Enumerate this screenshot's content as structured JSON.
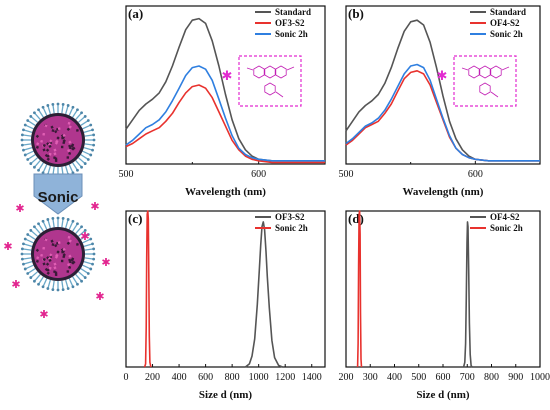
{
  "illustration": {
    "arrow_label": "Sonic",
    "colors": {
      "nanoparticle": "#b0368e",
      "shell": "#6aa8c8",
      "dye": "#e2248f",
      "arrow": "#7fa8d2"
    }
  },
  "chart_data": [
    {
      "id": "a",
      "type": "line",
      "panel_label": "(a)",
      "xlabel": "Wavelength (nm)",
      "ylabel": "",
      "xlim": [
        500,
        650
      ],
      "ylim": [
        0,
        1.0
      ],
      "xticks": [
        500,
        600
      ],
      "show_y_ticks": false,
      "legend_position": "top-right",
      "has_inset_structure": true,
      "series": [
        {
          "name": "Standard",
          "color": "#555555",
          "x": [
            500,
            505,
            510,
            515,
            520,
            525,
            530,
            535,
            540,
            545,
            550,
            555,
            560,
            565,
            570,
            575,
            580,
            585,
            590,
            595,
            600,
            610,
            620,
            630,
            640,
            650
          ],
          "y": [
            0.22,
            0.28,
            0.34,
            0.38,
            0.41,
            0.45,
            0.52,
            0.62,
            0.74,
            0.85,
            0.91,
            0.92,
            0.89,
            0.78,
            0.62,
            0.44,
            0.28,
            0.16,
            0.09,
            0.05,
            0.03,
            0.02,
            0.02,
            0.02,
            0.02,
            0.02
          ]
        },
        {
          "name": "OF3-S2",
          "color": "#e8322e",
          "x": [
            500,
            505,
            510,
            515,
            520,
            525,
            530,
            535,
            540,
            545,
            550,
            555,
            560,
            565,
            570,
            575,
            580,
            585,
            590,
            595,
            600,
            610,
            620,
            630,
            640,
            650
          ],
          "y": [
            0.11,
            0.13,
            0.16,
            0.19,
            0.21,
            0.23,
            0.27,
            0.32,
            0.39,
            0.45,
            0.49,
            0.5,
            0.48,
            0.42,
            0.33,
            0.24,
            0.15,
            0.09,
            0.05,
            0.03,
            0.02,
            0.01,
            0.01,
            0.01,
            0.01,
            0.01
          ]
        },
        {
          "name": "Sonic 2h",
          "color": "#2f7fe0",
          "x": [
            500,
            505,
            510,
            515,
            520,
            525,
            530,
            535,
            540,
            545,
            550,
            555,
            560,
            565,
            570,
            575,
            580,
            585,
            590,
            595,
            600,
            610,
            620,
            630,
            640,
            650
          ],
          "y": [
            0.12,
            0.15,
            0.19,
            0.23,
            0.25,
            0.28,
            0.33,
            0.4,
            0.48,
            0.56,
            0.61,
            0.62,
            0.6,
            0.53,
            0.41,
            0.29,
            0.18,
            0.1,
            0.06,
            0.04,
            0.03,
            0.02,
            0.02,
            0.02,
            0.02,
            0.02
          ]
        }
      ]
    },
    {
      "id": "b",
      "type": "line",
      "panel_label": "(b)",
      "xlabel": "Wavelength (nm)",
      "ylabel": "",
      "xlim": [
        500,
        650
      ],
      "ylim": [
        0,
        1.0
      ],
      "xticks": [
        500,
        600
      ],
      "show_y_ticks": false,
      "legend_position": "top-right",
      "has_inset_structure": true,
      "series": [
        {
          "name": "Standard",
          "color": "#555555",
          "x": [
            500,
            505,
            510,
            515,
            520,
            525,
            530,
            535,
            540,
            545,
            550,
            555,
            560,
            565,
            570,
            575,
            580,
            585,
            590,
            595,
            600,
            610,
            620,
            630,
            640,
            650
          ],
          "y": [
            0.21,
            0.27,
            0.33,
            0.37,
            0.4,
            0.44,
            0.51,
            0.61,
            0.73,
            0.84,
            0.9,
            0.91,
            0.88,
            0.77,
            0.61,
            0.43,
            0.27,
            0.16,
            0.09,
            0.05,
            0.03,
            0.02,
            0.02,
            0.02,
            0.02,
            0.02
          ]
        },
        {
          "name": "OF4-S2",
          "color": "#e8322e",
          "x": [
            500,
            505,
            510,
            515,
            520,
            525,
            530,
            535,
            540,
            545,
            550,
            555,
            560,
            565,
            570,
            575,
            580,
            585,
            590,
            595,
            600,
            610,
            620,
            630,
            640,
            650
          ],
          "y": [
            0.12,
            0.15,
            0.19,
            0.23,
            0.25,
            0.27,
            0.32,
            0.38,
            0.46,
            0.54,
            0.58,
            0.59,
            0.57,
            0.5,
            0.39,
            0.28,
            0.17,
            0.1,
            0.06,
            0.04,
            0.03,
            0.02,
            0.02,
            0.02,
            0.02,
            0.02
          ]
        },
        {
          "name": "Sonic 2h",
          "color": "#2f7fe0",
          "x": [
            500,
            505,
            510,
            515,
            520,
            525,
            530,
            535,
            540,
            545,
            550,
            555,
            560,
            565,
            570,
            575,
            580,
            585,
            590,
            595,
            600,
            610,
            620,
            630,
            640,
            650
          ],
          "y": [
            0.13,
            0.16,
            0.2,
            0.24,
            0.26,
            0.29,
            0.34,
            0.41,
            0.49,
            0.57,
            0.62,
            0.63,
            0.61,
            0.53,
            0.41,
            0.29,
            0.18,
            0.1,
            0.06,
            0.04,
            0.03,
            0.02,
            0.02,
            0.02,
            0.02,
            0.02
          ]
        }
      ]
    },
    {
      "id": "c",
      "type": "line",
      "panel_label": "(c)",
      "xlabel": "Size d  (nm)",
      "ylabel": "",
      "xlim": [
        0,
        1500
      ],
      "ylim": [
        0,
        1.0
      ],
      "xticks": [
        0,
        200,
        400,
        600,
        800,
        1000,
        1200,
        1400
      ],
      "show_y_ticks": false,
      "legend_position": "top-right",
      "series": [
        {
          "name": "OF3-S2",
          "color": "#555555",
          "x": [
            900,
            930,
            950,
            970,
            990,
            1005,
            1015,
            1025,
            1035,
            1045,
            1055,
            1065,
            1080,
            1100,
            1120,
            1150,
            1180
          ],
          "y": [
            0.0,
            0.02,
            0.07,
            0.18,
            0.4,
            0.62,
            0.78,
            0.9,
            0.93,
            0.88,
            0.74,
            0.58,
            0.38,
            0.17,
            0.06,
            0.01,
            0.0
          ]
        },
        {
          "name": "Sonic 2h",
          "color": "#e8322e",
          "x": [
            140,
            148,
            152,
            156,
            160,
            164,
            168,
            172,
            176,
            180,
            188
          ],
          "y": [
            0.0,
            0.02,
            0.25,
            0.7,
            0.98,
            1.0,
            0.95,
            0.6,
            0.2,
            0.03,
            0.0
          ]
        }
      ]
    },
    {
      "id": "d",
      "type": "line",
      "panel_label": "(d)",
      "xlabel": "Size d  (nm)",
      "ylabel": "",
      "xlim": [
        200,
        1000
      ],
      "ylim": [
        0,
        1.0
      ],
      "xticks": [
        200,
        300,
        400,
        500,
        600,
        700,
        800,
        900,
        1000
      ],
      "show_y_ticks": false,
      "legend_position": "top-right",
      "series": [
        {
          "name": "OF4-S2",
          "color": "#555555",
          "x": [
            685,
            690,
            693,
            696,
            699,
            701,
            703,
            706,
            709,
            712,
            716,
            720
          ],
          "y": [
            0.0,
            0.03,
            0.15,
            0.45,
            0.8,
            0.93,
            0.9,
            0.62,
            0.28,
            0.08,
            0.01,
            0.0
          ]
        },
        {
          "name": "Sonic 2h",
          "color": "#e8322e",
          "x": [
            248,
            250,
            252,
            254,
            256,
            258,
            260,
            262,
            264
          ],
          "y": [
            0.0,
            0.15,
            0.65,
            0.98,
            1.0,
            0.85,
            0.35,
            0.05,
            0.0
          ]
        }
      ]
    }
  ]
}
